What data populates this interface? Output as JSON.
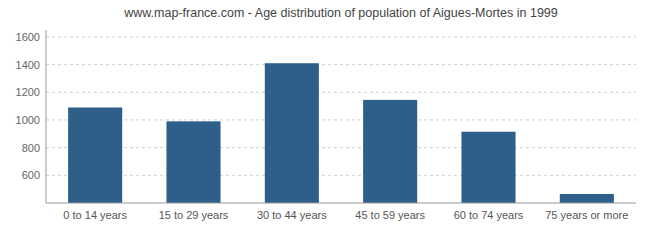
{
  "chart_data": {
    "type": "bar",
    "title": "www.map-france.com - Age distribution of population of Aigues-Mortes in 1999",
    "categories": [
      "0 to 14 years",
      "15 to 29 years",
      "30 to 44 years",
      "45 to 59 years",
      "60 to 74 years",
      "75 years or more"
    ],
    "values": [
      1090,
      990,
      1410,
      1145,
      915,
      465
    ],
    "color": "#2e5f8a",
    "ylim": [
      400,
      1650
    ],
    "yticks": [
      600,
      800,
      1000,
      1200,
      1400,
      1600
    ],
    "grid": true
  }
}
